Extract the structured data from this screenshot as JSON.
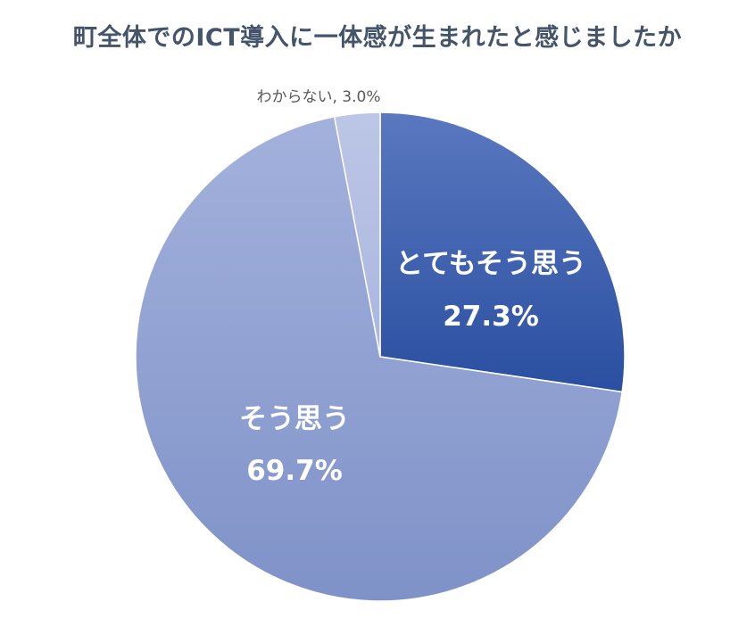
{
  "chart_data": {
    "type": "pie",
    "title": "町全体でのICT導入に一体感が生まれたと感じましたか",
    "slices": [
      {
        "label": "とてもそう思う",
        "value": 27.3,
        "value_label": "27.3%",
        "color": "#2f55a4"
      },
      {
        "label": "そう思う",
        "value": 69.7,
        "value_label": "69.7%",
        "color": "#8c9fd4"
      },
      {
        "label": "わからない",
        "value": 3.0,
        "value_label": "3.0%",
        "combined_label": "わからない, 3.0%",
        "color": "#b4c0e3"
      }
    ],
    "start_angle": "12 o'clock",
    "direction": "clockwise",
    "legend": "none"
  }
}
